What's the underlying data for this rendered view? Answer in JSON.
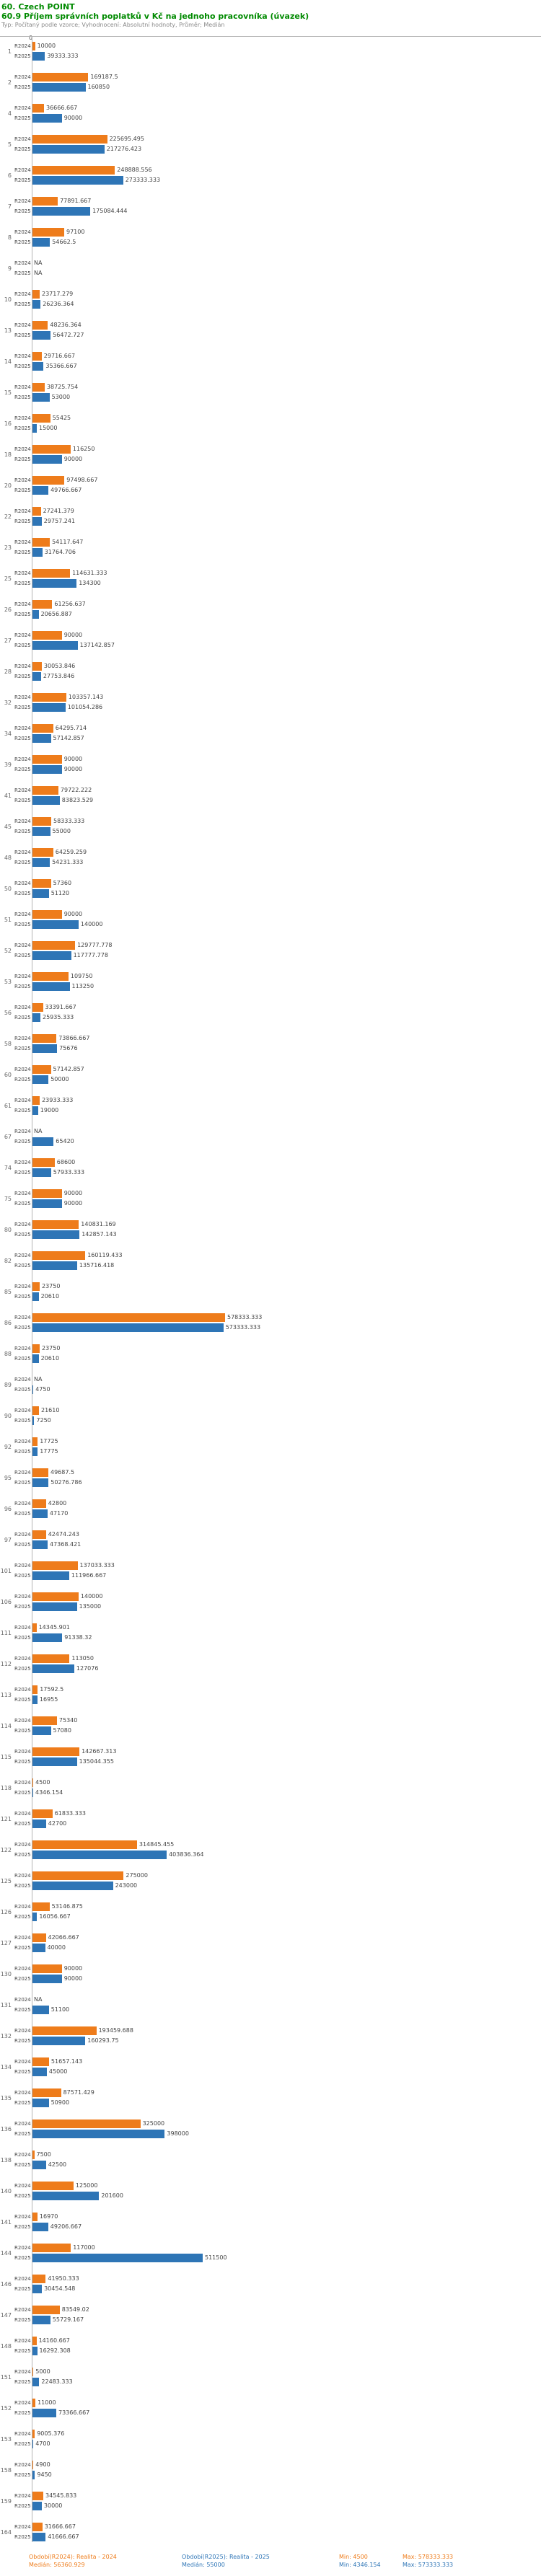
{
  "header": {
    "title": "60. Czech POINT",
    "subtitle": "60.9 Příjem správních poplatků v Kč na jednoho pracovníka (úvazek)",
    "meta": "Typ: Počítaný podle vzorce; Vyhodnocení: Absolutní hodnoty, Průměr; Medián"
  },
  "colors": {
    "r2024": "#EE7C1B",
    "r2025": "#2E75B6",
    "title_green": "#008A00"
  },
  "chart_data": {
    "type": "bar",
    "orientation": "horizontal",
    "title": "60. Czech POINT",
    "subtitle": "60.9 Příjem správních poplatků v Kč na jednoho pracovníka (úvazek)",
    "series_names": [
      "R2024",
      "R2025"
    ],
    "x_start_label": "0",
    "x_max": 578333.333,
    "grid": false,
    "legend_position": "bottom",
    "rows": [
      [
        "1",
        "10000",
        "39333.333"
      ],
      [
        "2",
        "169187.5",
        "160850"
      ],
      [
        "4",
        "36666.667",
        "90000"
      ],
      [
        "5",
        "225695.495",
        "217276.423"
      ],
      [
        "6",
        "248888.556",
        "273333.333"
      ],
      [
        "7",
        "77891.667",
        "175084.444"
      ],
      [
        "8",
        "97100",
        "54662.5"
      ],
      [
        "9",
        "NA",
        "NA"
      ],
      [
        "10",
        "23717.279",
        "26236.364"
      ],
      [
        "13",
        "48236.364",
        "56472.727"
      ],
      [
        "14",
        "29716.667",
        "35366.667"
      ],
      [
        "15",
        "38725.754",
        "53000"
      ],
      [
        "16",
        "55425",
        "15000"
      ],
      [
        "18",
        "116250",
        "90000"
      ],
      [
        "20",
        "97498.667",
        "49766.667"
      ],
      [
        "22",
        "27241.379",
        "29757.241"
      ],
      [
        "23",
        "54117.647",
        "31764.706"
      ],
      [
        "25",
        "114631.333",
        "134300"
      ],
      [
        "26",
        "61256.637",
        "20656.887"
      ],
      [
        "27",
        "90000",
        "137142.857"
      ],
      [
        "28",
        "30053.846",
        "27753.846"
      ],
      [
        "32",
        "103357.143",
        "101054.286"
      ],
      [
        "34",
        "64295.714",
        "57142.857"
      ],
      [
        "39",
        "90000",
        "90000"
      ],
      [
        "41",
        "79722.222",
        "83823.529"
      ],
      [
        "45",
        "58333.333",
        "55000"
      ],
      [
        "48",
        "64259.259",
        "54231.333"
      ],
      [
        "50",
        "57360",
        "51120"
      ],
      [
        "51",
        "90000",
        "140000"
      ],
      [
        "52",
        "129777.778",
        "117777.778"
      ],
      [
        "53",
        "109750",
        "113250"
      ],
      [
        "56",
        "33391.667",
        "25935.333"
      ],
      [
        "58",
        "73866.667",
        "75676"
      ],
      [
        "60",
        "57142.857",
        "50000"
      ],
      [
        "61",
        "23933.333",
        "19000"
      ],
      [
        "67",
        "NA",
        "65420"
      ],
      [
        "74",
        "68600",
        "57933.333"
      ],
      [
        "75",
        "90000",
        "90000"
      ],
      [
        "80",
        "140831.169",
        "142857.143"
      ],
      [
        "82",
        "160119.433",
        "135716.418"
      ],
      [
        "85",
        "23750",
        "20610"
      ],
      [
        "86",
        "578333.333",
        "573333.333"
      ],
      [
        "88",
        "23750",
        "20610"
      ],
      [
        "89",
        "NA",
        "4750"
      ],
      [
        "90",
        "21610",
        "7250"
      ],
      [
        "92",
        "17725",
        "17775"
      ],
      [
        "95",
        "49687.5",
        "50276.786"
      ],
      [
        "96",
        "42800",
        "47170"
      ],
      [
        "97",
        "42474.243",
        "47368.421"
      ],
      [
        "101",
        "137033.333",
        "111966.667"
      ],
      [
        "106",
        "140000",
        "135000"
      ],
      [
        "111",
        "14345.901",
        "91338.32"
      ],
      [
        "112",
        "113050",
        "127076"
      ],
      [
        "113",
        "17592.5",
        "16955"
      ],
      [
        "114",
        "75340",
        "57080"
      ],
      [
        "115",
        "142667.313",
        "135044.355"
      ],
      [
        "118",
        "4500",
        "4346.154"
      ],
      [
        "121",
        "61833.333",
        "42700"
      ],
      [
        "122",
        "314845.455",
        "403836.364"
      ],
      [
        "125",
        "275000",
        "243000"
      ],
      [
        "126",
        "53146.875",
        "16056.667"
      ],
      [
        "127",
        "42066.667",
        "40000"
      ],
      [
        "130",
        "90000",
        "90000"
      ],
      [
        "131",
        "NA",
        "51100"
      ],
      [
        "132",
        "193459.688",
        "160293.75"
      ],
      [
        "134",
        "51657.143",
        "45000"
      ],
      [
        "135",
        "87571.429",
        "50900"
      ],
      [
        "136",
        "325000",
        "398000"
      ],
      [
        "138",
        "7500",
        "42500"
      ],
      [
        "140",
        "125000",
        "201600"
      ],
      [
        "141",
        "16970",
        "49206.667"
      ],
      [
        "144",
        "117000",
        "511500"
      ],
      [
        "146",
        "41950.333",
        "30454.548"
      ],
      [
        "147",
        "83549.02",
        "55729.167"
      ],
      [
        "148",
        "14160.667",
        "16292.308"
      ],
      [
        "151",
        "5000",
        "22483.333"
      ],
      [
        "152",
        "11000",
        "73366.667"
      ],
      [
        "153",
        "9005.376",
        "4700"
      ],
      [
        "158",
        "4900",
        "9450"
      ],
      [
        "159",
        "34545.833",
        "30000"
      ],
      [
        "164",
        "31666.667",
        "41666.667"
      ]
    ]
  },
  "legend": {
    "r2024": {
      "period": "Období(R2024): Realita - 2024",
      "median": "Medián: 56360.929",
      "min": "Min: 4500",
      "max": "Max: 578333.333"
    },
    "r2025": {
      "period": "Období(R2025): Realita - 2025",
      "median": "Medián: 55000",
      "min": "Min: 4346.154",
      "max": "Max: 573333.333"
    }
  }
}
